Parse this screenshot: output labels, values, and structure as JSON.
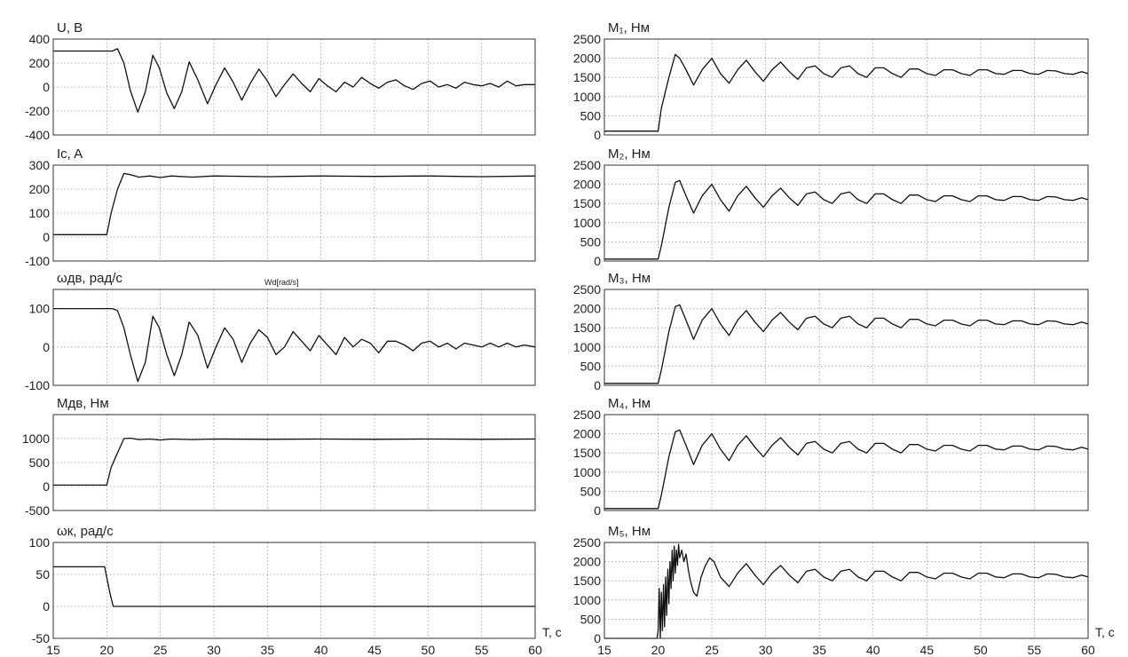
{
  "x_axis_label": "T, с",
  "x_ticks": [
    15,
    20,
    25,
    30,
    35,
    40,
    45,
    50,
    55,
    60
  ],
  "stray_label": "Wd[rad/s]",
  "chart_data": [
    {
      "type": "line",
      "title": "U, В",
      "xlim": [
        15,
        60
      ],
      "ylim": [
        -400,
        400
      ],
      "yticks": [
        400,
        200,
        0,
        -200,
        -400
      ],
      "x": [
        15,
        20.5,
        21,
        21.6,
        22.2,
        22.9,
        23.6,
        24.3,
        24.9,
        25.6,
        26.3,
        27,
        27.7,
        28.5,
        29.4,
        30.2,
        31,
        31.8,
        32.6,
        33.4,
        34.2,
        35,
        35.8,
        36.6,
        37.4,
        38.2,
        39,
        39.8,
        40.6,
        41.4,
        42.2,
        43,
        43.8,
        44.6,
        45.4,
        46.2,
        47,
        47.8,
        48.6,
        49.4,
        50.2,
        51,
        51.8,
        52.6,
        53.4,
        54.2,
        55,
        55.8,
        56.6,
        57.4,
        58.2,
        59,
        60
      ],
      "series": [
        {
          "values": [
            300,
            300,
            320,
            200,
            -30,
            -210,
            -40,
            265,
            160,
            -50,
            -180,
            -40,
            210,
            60,
            -140,
            20,
            160,
            40,
            -110,
            30,
            150,
            50,
            -80,
            20,
            110,
            30,
            -40,
            70,
            10,
            -40,
            40,
            0,
            80,
            30,
            -10,
            40,
            60,
            10,
            -20,
            30,
            50,
            0,
            20,
            -10,
            40,
            20,
            10,
            30,
            0,
            50,
            10,
            20,
            20
          ]
        }
      ]
    },
    {
      "type": "line",
      "title": "Ic, A",
      "xlim": [
        15,
        60
      ],
      "ylim": [
        -100,
        300
      ],
      "yticks": [
        300,
        200,
        100,
        0,
        -100
      ],
      "x": [
        15,
        20,
        20.4,
        21,
        21.6,
        22.2,
        23,
        24,
        25,
        26,
        28,
        30,
        35,
        40,
        45,
        50,
        55,
        60
      ],
      "series": [
        {
          "values": [
            10,
            10,
            100,
            200,
            265,
            260,
            250,
            255,
            248,
            255,
            250,
            255,
            252,
            255,
            253,
            255,
            252,
            255
          ]
        }
      ]
    },
    {
      "type": "line",
      "title": "ωдв, рад/с",
      "xlim": [
        15,
        60
      ],
      "ylim": [
        -100,
        150
      ],
      "yticks": [
        100,
        0,
        -100
      ],
      "x": [
        15,
        20.5,
        21,
        21.6,
        22.2,
        22.9,
        23.6,
        24.3,
        24.9,
        25.6,
        26.3,
        27,
        27.7,
        28.5,
        29.4,
        30.2,
        31,
        31.8,
        32.6,
        33.4,
        34.2,
        35,
        35.8,
        36.6,
        37.4,
        38.2,
        39,
        39.8,
        40.6,
        41.4,
        42.2,
        43,
        43.8,
        44.6,
        45.4,
        46.2,
        47,
        47.8,
        48.6,
        49.4,
        50.2,
        51,
        51.8,
        52.6,
        53.4,
        54.2,
        55,
        55.8,
        56.6,
        57.4,
        58.2,
        59,
        60
      ],
      "series": [
        {
          "values": [
            100,
            100,
            95,
            50,
            -20,
            -90,
            -40,
            80,
            50,
            -20,
            -75,
            -20,
            65,
            30,
            -55,
            0,
            50,
            20,
            -40,
            10,
            45,
            25,
            -20,
            0,
            40,
            15,
            -10,
            30,
            5,
            -20,
            25,
            0,
            20,
            10,
            -15,
            15,
            15,
            5,
            -10,
            10,
            15,
            0,
            10,
            -5,
            10,
            5,
            0,
            10,
            0,
            10,
            0,
            5,
            0
          ]
        }
      ]
    },
    {
      "type": "line",
      "title": "Mдв, Нм",
      "xlim": [
        15,
        60
      ],
      "ylim": [
        -500,
        1500
      ],
      "yticks": [
        1000,
        500,
        0,
        -500
      ],
      "x": [
        15,
        20,
        20.4,
        21,
        21.6,
        22.2,
        23,
        24,
        25,
        26,
        28,
        30,
        35,
        40,
        45,
        50,
        55,
        60
      ],
      "series": [
        {
          "values": [
            30,
            30,
            400,
            700,
            1000,
            1010,
            980,
            990,
            970,
            990,
            980,
            990,
            985,
            990,
            985,
            990,
            985,
            990
          ]
        }
      ]
    },
    {
      "type": "line",
      "title": "ωк, рад/с",
      "xlim": [
        15,
        60
      ],
      "ylim": [
        -50,
        100
      ],
      "yticks": [
        100,
        50,
        0,
        -50
      ],
      "x": [
        15,
        19.8,
        20.3,
        20.6,
        60
      ],
      "series": [
        {
          "values": [
            62,
            62,
            20,
            0,
            0
          ]
        }
      ]
    },
    {
      "type": "line",
      "title": "M₁, Нм",
      "xlim": [
        15,
        60
      ],
      "ylim": [
        0,
        2500
      ],
      "yticks": [
        2500,
        2000,
        1500,
        1000,
        500,
        0
      ],
      "x": [
        15,
        20,
        20.3,
        21,
        21.6,
        22,
        22.6,
        23.3,
        24.1,
        25,
        25.8,
        26.6,
        27.4,
        28.2,
        29,
        29.8,
        30.6,
        31.4,
        32.2,
        33,
        33.8,
        34.6,
        35.4,
        36.2,
        37,
        37.8,
        38.6,
        39.4,
        40.2,
        41,
        41.8,
        42.6,
        43.4,
        44.2,
        45,
        45.8,
        46.6,
        47.4,
        48.2,
        49,
        49.8,
        50.6,
        51.4,
        52.2,
        53,
        53.8,
        54.6,
        55.4,
        56.2,
        57,
        57.8,
        58.6,
        59.4,
        60
      ],
      "series": [
        {
          "values": [
            100,
            100,
            700,
            1500,
            2100,
            2000,
            1700,
            1300,
            1700,
            2000,
            1600,
            1350,
            1700,
            1950,
            1650,
            1400,
            1700,
            1900,
            1650,
            1450,
            1750,
            1800,
            1600,
            1500,
            1750,
            1800,
            1600,
            1500,
            1750,
            1750,
            1600,
            1500,
            1720,
            1720,
            1600,
            1550,
            1700,
            1700,
            1600,
            1550,
            1700,
            1700,
            1600,
            1580,
            1680,
            1680,
            1600,
            1580,
            1680,
            1670,
            1600,
            1580,
            1650,
            1600
          ]
        }
      ]
    },
    {
      "type": "line",
      "title": "M₂, Нм",
      "xlim": [
        15,
        60
      ],
      "ylim": [
        0,
        2500
      ],
      "yticks": [
        2500,
        2000,
        1500,
        1000,
        500,
        0
      ],
      "x": [
        15,
        20,
        20.3,
        21,
        21.6,
        22,
        22.6,
        23.3,
        24.1,
        25,
        25.8,
        26.6,
        27.4,
        28.2,
        29,
        29.8,
        30.6,
        31.4,
        32.2,
        33,
        33.8,
        34.6,
        35.4,
        36.2,
        37,
        37.8,
        38.6,
        39.4,
        40.2,
        41,
        41.8,
        42.6,
        43.4,
        44.2,
        45,
        45.8,
        46.6,
        47.4,
        48.2,
        49,
        49.8,
        50.6,
        51.4,
        52.2,
        53,
        53.8,
        54.6,
        55.4,
        56.2,
        57,
        57.8,
        58.6,
        59.4,
        60
      ],
      "series": [
        {
          "values": [
            50,
            50,
            400,
            1400,
            2050,
            2100,
            1700,
            1250,
            1700,
            2000,
            1600,
            1300,
            1700,
            1950,
            1650,
            1400,
            1700,
            1900,
            1650,
            1450,
            1750,
            1800,
            1600,
            1500,
            1750,
            1800,
            1600,
            1500,
            1750,
            1750,
            1600,
            1500,
            1720,
            1720,
            1600,
            1550,
            1700,
            1700,
            1600,
            1550,
            1700,
            1700,
            1600,
            1580,
            1680,
            1680,
            1600,
            1580,
            1680,
            1670,
            1600,
            1580,
            1650,
            1600
          ]
        }
      ]
    },
    {
      "type": "line",
      "title": "M₃, Нм",
      "xlim": [
        15,
        60
      ],
      "ylim": [
        0,
        2500
      ],
      "yticks": [
        2500,
        2000,
        1500,
        1000,
        500,
        0
      ],
      "x": [
        15,
        20,
        20.3,
        21,
        21.6,
        22,
        22.6,
        23.3,
        24.1,
        25,
        25.8,
        26.6,
        27.4,
        28.2,
        29,
        29.8,
        30.6,
        31.4,
        32.2,
        33,
        33.8,
        34.6,
        35.4,
        36.2,
        37,
        37.8,
        38.6,
        39.4,
        40.2,
        41,
        41.8,
        42.6,
        43.4,
        44.2,
        45,
        45.8,
        46.6,
        47.4,
        48.2,
        49,
        49.8,
        50.6,
        51.4,
        52.2,
        53,
        53.8,
        54.6,
        55.4,
        56.2,
        57,
        57.8,
        58.6,
        59.4,
        60
      ],
      "series": [
        {
          "values": [
            50,
            50,
            400,
            1400,
            2050,
            2100,
            1700,
            1200,
            1700,
            2000,
            1600,
            1300,
            1700,
            1950,
            1650,
            1400,
            1700,
            1900,
            1650,
            1450,
            1750,
            1800,
            1600,
            1500,
            1750,
            1800,
            1600,
            1500,
            1750,
            1750,
            1600,
            1500,
            1720,
            1720,
            1600,
            1550,
            1700,
            1700,
            1600,
            1550,
            1700,
            1700,
            1600,
            1580,
            1680,
            1680,
            1600,
            1580,
            1680,
            1670,
            1600,
            1580,
            1650,
            1600
          ]
        }
      ]
    },
    {
      "type": "line",
      "title": "M₄, Нм",
      "xlim": [
        15,
        60
      ],
      "ylim": [
        0,
        2500
      ],
      "yticks": [
        2500,
        2000,
        1500,
        1000,
        500,
        0
      ],
      "x": [
        15,
        20,
        20.3,
        21,
        21.6,
        22,
        22.6,
        23.3,
        24.1,
        25,
        25.8,
        26.6,
        27.4,
        28.2,
        29,
        29.8,
        30.6,
        31.4,
        32.2,
        33,
        33.8,
        34.6,
        35.4,
        36.2,
        37,
        37.8,
        38.6,
        39.4,
        40.2,
        41,
        41.8,
        42.6,
        43.4,
        44.2,
        45,
        45.8,
        46.6,
        47.4,
        48.2,
        49,
        49.8,
        50.6,
        51.4,
        52.2,
        53,
        53.8,
        54.6,
        55.4,
        56.2,
        57,
        57.8,
        58.6,
        59.4,
        60
      ],
      "series": [
        {
          "values": [
            50,
            50,
            400,
            1400,
            2050,
            2100,
            1700,
            1200,
            1700,
            2000,
            1600,
            1300,
            1700,
            1950,
            1650,
            1400,
            1700,
            1900,
            1650,
            1450,
            1750,
            1800,
            1600,
            1500,
            1750,
            1800,
            1600,
            1500,
            1750,
            1750,
            1600,
            1500,
            1720,
            1720,
            1600,
            1550,
            1700,
            1700,
            1600,
            1550,
            1700,
            1700,
            1600,
            1580,
            1680,
            1680,
            1600,
            1580,
            1680,
            1670,
            1600,
            1580,
            1650,
            1600
          ]
        }
      ]
    },
    {
      "type": "line",
      "title": "M₅, Нм",
      "xlim": [
        15,
        60
      ],
      "ylim": [
        0,
        2500
      ],
      "yticks": [
        2500,
        2000,
        1500,
        1000,
        500,
        0
      ],
      "x": [
        15,
        19.9,
        20,
        20.1,
        20.2,
        20.3,
        20.4,
        20.5,
        20.6,
        20.7,
        20.8,
        20.9,
        21,
        21.1,
        21.2,
        21.3,
        21.4,
        21.5,
        21.6,
        21.7,
        21.8,
        21.9,
        22,
        22.2,
        22.4,
        22.6,
        22.8,
        23,
        23.3,
        23.6,
        24,
        24.4,
        24.8,
        25.2,
        25.8,
        26.6,
        27.4,
        28.2,
        29,
        29.8,
        30.6,
        31.4,
        32.2,
        33,
        33.8,
        34.6,
        35.4,
        36.2,
        37,
        37.8,
        38.6,
        39.4,
        40.2,
        41,
        41.8,
        42.6,
        43.4,
        44.2,
        45,
        45.8,
        46.6,
        47.4,
        48.2,
        49,
        49.8,
        50.6,
        51.4,
        52.2,
        53,
        53.8,
        54.6,
        55.4,
        56.2,
        57,
        57.8,
        58.6,
        59.4,
        60
      ],
      "series": [
        {
          "values": [
            0,
            0,
            200,
            1300,
            0,
            1200,
            200,
            1400,
            300,
            1600,
            600,
            1800,
            900,
            2000,
            1300,
            2300,
            1500,
            2400,
            1700,
            2300,
            1900,
            2450,
            2100,
            2300,
            2000,
            2200,
            1800,
            1500,
            1200,
            1100,
            1600,
            1900,
            2100,
            2000,
            1600,
            1350,
            1700,
            1950,
            1650,
            1400,
            1700,
            1900,
            1650,
            1450,
            1750,
            1800,
            1600,
            1500,
            1750,
            1800,
            1600,
            1500,
            1750,
            1750,
            1600,
            1500,
            1720,
            1720,
            1600,
            1550,
            1700,
            1700,
            1600,
            1550,
            1700,
            1700,
            1600,
            1580,
            1680,
            1680,
            1600,
            1580,
            1680,
            1670,
            1600,
            1580,
            1650,
            1600
          ]
        }
      ]
    }
  ]
}
